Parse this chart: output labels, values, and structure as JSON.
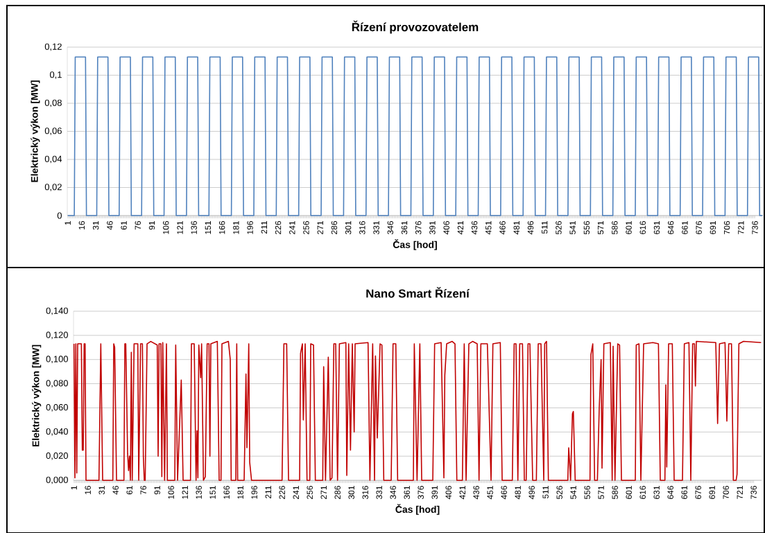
{
  "chart_data": [
    {
      "type": "line",
      "title": "Řízení provozovatelem",
      "xlabel": "Čas [hod]",
      "ylabel": "Elektrický výkon [MW]",
      "color": "#4f81bd",
      "grid": "y",
      "xlim": [
        0.5,
        744.5
      ],
      "ylim": [
        0,
        0.12
      ],
      "xticks": [
        1,
        16,
        31,
        46,
        61,
        76,
        91,
        106,
        121,
        136,
        151,
        166,
        181,
        196,
        211,
        226,
        241,
        256,
        271,
        286,
        301,
        316,
        331,
        346,
        361,
        376,
        391,
        406,
        421,
        436,
        451,
        466,
        481,
        496,
        511,
        526,
        541,
        556,
        571,
        586,
        601,
        616,
        631,
        646,
        661,
        676,
        691,
        706,
        721,
        736
      ],
      "yticks": [
        {
          "value": 0,
          "label": "0"
        },
        {
          "value": 0.02,
          "label": "0,02"
        },
        {
          "value": 0.04,
          "label": "0,04"
        },
        {
          "value": 0.06,
          "label": "0,06"
        },
        {
          "value": 0.08,
          "label": "0,08"
        },
        {
          "value": 0.1,
          "label": "0,1"
        },
        {
          "value": 0.12,
          "label": "0,12"
        }
      ],
      "x": [
        1,
        8,
        9,
        20,
        21,
        32,
        33,
        44,
        45,
        56,
        57,
        68,
        69,
        80,
        81,
        92,
        93,
        104,
        105,
        116,
        117,
        128,
        129,
        140,
        141,
        152,
        153,
        164,
        165,
        176,
        177,
        188,
        189,
        200,
        201,
        212,
        213,
        224,
        225,
        236,
        237,
        248,
        249,
        260,
        261,
        272,
        273,
        284,
        285,
        296,
        297,
        308,
        309,
        320,
        321,
        332,
        333,
        344,
        345,
        356,
        357,
        368,
        369,
        380,
        381,
        392,
        393,
        404,
        405,
        416,
        417,
        428,
        429,
        440,
        441,
        452,
        453,
        464,
        465,
        476,
        477,
        488,
        489,
        500,
        501,
        512,
        513,
        524,
        525,
        536,
        537,
        548,
        549,
        560,
        561,
        572,
        573,
        584,
        585,
        596,
        597,
        608,
        609,
        620,
        621,
        632,
        633,
        644,
        645,
        656,
        657,
        668,
        669,
        680,
        681,
        692,
        693,
        704,
        705,
        716,
        717,
        728,
        729,
        740,
        741,
        744
      ],
      "values": [
        0,
        0,
        0.113,
        0.113,
        0,
        0,
        0.113,
        0.113,
        0,
        0,
        0.113,
        0.113,
        0,
        0,
        0.113,
        0.113,
        0,
        0,
        0.113,
        0.113,
        0,
        0,
        0.113,
        0.113,
        0,
        0,
        0.113,
        0.113,
        0,
        0,
        0.113,
        0.113,
        0,
        0,
        0.113,
        0.113,
        0,
        0,
        0.113,
        0.113,
        0,
        0,
        0.113,
        0.113,
        0,
        0,
        0.113,
        0.113,
        0,
        0,
        0.113,
        0.113,
        0,
        0,
        0.113,
        0.113,
        0,
        0,
        0.113,
        0.113,
        0,
        0,
        0.113,
        0.113,
        0,
        0,
        0.113,
        0.113,
        0,
        0,
        0.113,
        0.113,
        0,
        0,
        0.113,
        0.113,
        0,
        0,
        0.113,
        0.113,
        0,
        0,
        0.113,
        0.113,
        0,
        0,
        0.113,
        0.113,
        0,
        0,
        0.113,
        0.113,
        0,
        0,
        0.113,
        0.113,
        0,
        0,
        0.113,
        0.113,
        0,
        0,
        0.113,
        0.113,
        0,
        0,
        0.113,
        0.113,
        0,
        0,
        0.113,
        0.113,
        0,
        0,
        0.113,
        0.113,
        0,
        0,
        0.113,
        0.113,
        0,
        0,
        0.113,
        0.113,
        0,
        0
      ]
    },
    {
      "type": "line",
      "title": "Nano Smart Řízení",
      "xlabel": "Čas [hod]",
      "ylabel": "Elektrický výkon [MW]",
      "color": "#c00000",
      "grid": "y",
      "xlim": [
        0.5,
        744.5
      ],
      "ylim": [
        0,
        0.14
      ],
      "xticks": [
        1,
        16,
        31,
        46,
        61,
        76,
        91,
        106,
        121,
        136,
        151,
        166,
        181,
        196,
        211,
        226,
        241,
        256,
        271,
        286,
        301,
        316,
        331,
        346,
        361,
        376,
        391,
        406,
        421,
        436,
        451,
        466,
        481,
        496,
        511,
        526,
        541,
        556,
        571,
        586,
        601,
        616,
        631,
        646,
        661,
        676,
        691,
        706,
        721,
        736
      ],
      "yticks": [
        {
          "value": 0,
          "label": "0,000"
        },
        {
          "value": 0.02,
          "label": "0,020"
        },
        {
          "value": 0.04,
          "label": "0,040"
        },
        {
          "value": 0.06,
          "label": "0,060"
        },
        {
          "value": 0.08,
          "label": "0,080"
        },
        {
          "value": 0.1,
          "label": "0,100"
        },
        {
          "value": 0.12,
          "label": "0,120"
        },
        {
          "value": 0.14,
          "label": "0,140"
        }
      ],
      "x": [
        1,
        2,
        3,
        4,
        5,
        9,
        10,
        11,
        12,
        13,
        14,
        28,
        30,
        32,
        43,
        44,
        45,
        47,
        55,
        56,
        57,
        59,
        60,
        61,
        62,
        63,
        64,
        66,
        70,
        71,
        73,
        75,
        76,
        77,
        78,
        80,
        84,
        91,
        92,
        93,
        95,
        96,
        97,
        99,
        101,
        102,
        110,
        111,
        113,
        117,
        119,
        127,
        128,
        131,
        133,
        134,
        135,
        136,
        138,
        139,
        141,
        143,
        145,
        147,
        148,
        149,
        156,
        158,
        160,
        161,
        168,
        170,
        171,
        176,
        177,
        178,
        185,
        187,
        188,
        190,
        191,
        193,
        226,
        228,
        231,
        233,
        245,
        246,
        248,
        249,
        251,
        253,
        256,
        257,
        260,
        262,
        270,
        271,
        273,
        276,
        278,
        280,
        282,
        284,
        286,
        288,
        295,
        296,
        298,
        300,
        302,
        304,
        305,
        319,
        321,
        324,
        326,
        327,
        329,
        332,
        334,
        336,
        344,
        346,
        349,
        351,
        368,
        369,
        372,
        375,
        377,
        389,
        391,
        398,
        401,
        402,
        404,
        410,
        413,
        415,
        421,
        423,
        425,
        428,
        432,
        437,
        439,
        441,
        448,
        452,
        454,
        462,
        464,
        475,
        477,
        479,
        481,
        483,
        486,
        488,
        490,
        492,
        494,
        497,
        501,
        503,
        506,
        509,
        510,
        512,
        514,
        535,
        536,
        538,
        540,
        541,
        543,
        559,
        560,
        562,
        564,
        567,
        569,
        571,
        572,
        574,
        581,
        583,
        584,
        586,
        589,
        591,
        593,
        608,
        609,
        612,
        614,
        617,
        627,
        633,
        635,
        640,
        641,
        642,
        644,
        648,
        650,
        659,
        661,
        666,
        668,
        670,
        672,
        673,
        674,
        695,
        697,
        699,
        705,
        707,
        709,
        712,
        714,
        717,
        718,
        720,
        725,
        744
      ],
      "values": [
        0.113,
        0.002,
        0.113,
        0.006,
        0.113,
        0.113,
        0.025,
        0.025,
        0.113,
        0.113,
        0,
        0,
        0.113,
        0,
        0,
        0.113,
        0.11,
        0,
        0,
        0.113,
        0.113,
        0.022,
        0.008,
        0.02,
        0,
        0.106,
        0,
        0.113,
        0.113,
        0,
        0.113,
        0.113,
        0.02,
        0,
        0,
        0.113,
        0.115,
        0.112,
        0.02,
        0.113,
        0.113,
        0.003,
        0.114,
        0,
        0.113,
        0,
        0,
        0.112,
        0,
        0.083,
        0,
        0,
        0.113,
        0.113,
        0,
        0.041,
        0.002,
        0.112,
        0.085,
        0.113,
        0,
        0.003,
        0.113,
        0.113,
        0.02,
        0.113,
        0.115,
        0,
        0,
        0.113,
        0.115,
        0.1,
        0,
        0,
        0.113,
        0,
        0,
        0.088,
        0.027,
        0.113,
        0.015,
        0,
        0,
        0.113,
        0.113,
        0,
        0,
        0.105,
        0.113,
        0.05,
        0.113,
        0,
        0,
        0.113,
        0.112,
        0,
        0,
        0.094,
        0,
        0.102,
        0,
        0.002,
        0.113,
        0.113,
        0,
        0.113,
        0.114,
        0.004,
        0.113,
        0.025,
        0.113,
        0.04,
        0.113,
        0.114,
        0,
        0.113,
        0,
        0.103,
        0.035,
        0.113,
        0.112,
        0,
        0,
        0.113,
        0.113,
        0,
        0,
        0.113,
        0,
        0.113,
        0,
        0,
        0.113,
        0.114,
        0.002,
        0.087,
        0.113,
        0.115,
        0.113,
        0,
        0,
        0.113,
        0,
        0.113,
        0.115,
        0.113,
        0,
        0.113,
        0.113,
        0,
        0.113,
        0.114,
        0,
        0,
        0.113,
        0.113,
        0,
        0.113,
        0.113,
        0,
        0,
        0.113,
        0.113,
        0,
        0,
        0.113,
        0.113,
        0,
        0.113,
        0.115,
        0,
        0,
        0.027,
        0,
        0.055,
        0.057,
        0,
        0,
        0.104,
        0.113,
        0,
        0,
        0.06,
        0.1,
        0.01,
        0.113,
        0.114,
        0,
        0.111,
        0,
        0.113,
        0.112,
        0,
        0,
        0.112,
        0.113,
        0,
        0.113,
        0.114,
        0.113,
        0,
        0,
        0.079,
        0.011,
        0.113,
        0.113,
        0,
        0,
        0.113,
        0.114,
        0,
        0.113,
        0.113,
        0.078,
        0.115,
        0.114,
        0.047,
        0.113,
        0.114,
        0.049,
        0.113,
        0.113,
        0,
        0,
        0.005,
        0.113,
        0.115,
        0.114
      ]
    }
  ]
}
